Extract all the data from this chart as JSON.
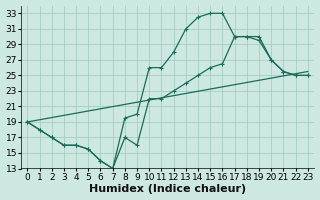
{
  "xlabel": "Humidex (Indice chaleur)",
  "bg_color": "#cce8e0",
  "grid_color": "#a8ccC4",
  "line_color": "#1a6b5a",
  "xlim": [
    -0.5,
    23.5
  ],
  "ylim": [
    13,
    34
  ],
  "xticks": [
    0,
    1,
    2,
    3,
    4,
    5,
    6,
    7,
    8,
    9,
    10,
    11,
    12,
    13,
    14,
    15,
    16,
    17,
    18,
    19,
    20,
    21,
    22,
    23
  ],
  "yticks": [
    13,
    15,
    17,
    19,
    21,
    23,
    25,
    27,
    29,
    31,
    33
  ],
  "line1_x": [
    0,
    1,
    2,
    3,
    4,
    5,
    6,
    7,
    8,
    9,
    10,
    11,
    12,
    13,
    14,
    15,
    16,
    17,
    18,
    19,
    20,
    21,
    22,
    23
  ],
  "line1_y": [
    19,
    18,
    17,
    16,
    16,
    15.5,
    14,
    13,
    19.5,
    20,
    26,
    26,
    28,
    31,
    32.5,
    33,
    33,
    30,
    30,
    30,
    27,
    25.5,
    25,
    25
  ],
  "line2_x": [
    0,
    1,
    2,
    3,
    4,
    5,
    6,
    7,
    8,
    9,
    10,
    11,
    12,
    13,
    14,
    15,
    16,
    17,
    18,
    19,
    20,
    21,
    22,
    23
  ],
  "line2_y": [
    19,
    18,
    17,
    16,
    16,
    15.5,
    14,
    13,
    17,
    16,
    22,
    22,
    23,
    24,
    25,
    26,
    26.5,
    30,
    30,
    29.5,
    27,
    25.5,
    25,
    25
  ],
  "line3_x": [
    0,
    23
  ],
  "line3_y": [
    19,
    25.5
  ],
  "xlabel_fontsize": 8,
  "tick_fontsize": 6.5
}
